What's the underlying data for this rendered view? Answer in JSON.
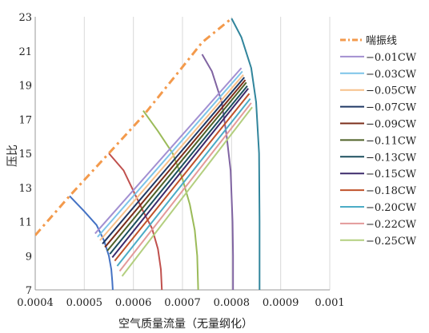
{
  "chart_data": {
    "type": "line",
    "xlabel": "空气质量流量（无量纲化）",
    "ylabel": "压比",
    "xlim": [
      0.0004,
      0.001
    ],
    "ylim": [
      7,
      23
    ],
    "xticks": [
      "0.0004",
      "0.0005",
      "0.0006",
      "0.0007",
      "0.0008",
      "0.0009",
      "0.001"
    ],
    "yticks": [
      "7",
      "9",
      "11",
      "13",
      "15",
      "17",
      "19",
      "21",
      "23"
    ],
    "grid": "vertical",
    "legend_position": "right",
    "series": [
      {
        "name": "喘振线",
        "color": "#f39a4c",
        "dash": "dashdot",
        "points": [
          [
            0.0004,
            10.2
          ],
          [
            0.00047,
            12.5
          ],
          [
            0.00055,
            15.0
          ],
          [
            0.00062,
            17.2
          ],
          [
            0.00069,
            19.7
          ],
          [
            0.00074,
            21.5
          ],
          [
            0.0008,
            22.9
          ]
        ]
      },
      {
        "name": "−0.01CW",
        "color": "#a28fd1",
        "points": [
          [
            0.000522,
            10.3
          ],
          [
            0.00082,
            20.0
          ]
        ]
      },
      {
        "name": "−0.03CW",
        "color": "#7cc4e8",
        "points": [
          [
            0.000527,
            10.1
          ],
          [
            0.000822,
            19.8
          ]
        ]
      },
      {
        "name": "−0.05CW",
        "color": "#f7c08a",
        "points": [
          [
            0.000532,
            9.9
          ],
          [
            0.000824,
            19.6
          ]
        ]
      },
      {
        "name": "−0.07CW",
        "color": "#1f3864",
        "points": [
          [
            0.000537,
            9.7
          ],
          [
            0.000826,
            19.45
          ]
        ]
      },
      {
        "name": "−0.09CW",
        "color": "#7b2d1a",
        "points": [
          [
            0.000542,
            9.5
          ],
          [
            0.000828,
            19.3
          ]
        ]
      },
      {
        "name": "−0.11CW",
        "color": "#4f6228",
        "points": [
          [
            0.000547,
            9.3
          ],
          [
            0.00083,
            19.15
          ]
        ]
      },
      {
        "name": "−0.13CW",
        "color": "#1b4f5e",
        "points": [
          [
            0.000552,
            9.1
          ],
          [
            0.000832,
            18.95
          ]
        ]
      },
      {
        "name": "−0.15CW",
        "color": "#3c2a6b",
        "points": [
          [
            0.000557,
            8.9
          ],
          [
            0.000834,
            18.8
          ]
        ]
      },
      {
        "name": "−0.18CW",
        "color": "#c0522a",
        "points": [
          [
            0.000562,
            8.7
          ],
          [
            0.000836,
            18.5
          ]
        ]
      },
      {
        "name": "−0.20CW",
        "color": "#4bacc6",
        "points": [
          [
            0.000567,
            8.4
          ],
          [
            0.000838,
            18.2
          ]
        ]
      },
      {
        "name": "−0.22CW",
        "color": "#e39a9a",
        "points": [
          [
            0.000572,
            8.1
          ],
          [
            0.00084,
            17.95
          ]
        ]
      },
      {
        "name": "−0.25CW",
        "color": "#b3cf7f",
        "points": [
          [
            0.000577,
            7.8
          ],
          [
            0.000842,
            17.7
          ]
        ]
      }
    ],
    "annotations": [
      {
        "color": "#4472c4",
        "points": [
          [
            0.00047,
            12.5
          ],
          [
            0.0005,
            11.6
          ],
          [
            0.000525,
            10.8
          ],
          [
            0.00054,
            9.9
          ],
          [
            0.00055,
            9.0
          ],
          [
            0.000555,
            8.2
          ],
          [
            0.000557,
            7.5
          ],
          [
            0.000558,
            7.0
          ]
        ]
      },
      {
        "color": "#c0504d",
        "points": [
          [
            0.00055,
            15.0
          ],
          [
            0.00058,
            14.0
          ],
          [
            0.0006,
            12.8
          ],
          [
            0.00062,
            11.6
          ],
          [
            0.000638,
            10.6
          ],
          [
            0.00065,
            9.4
          ],
          [
            0.000656,
            8.2
          ],
          [
            0.000658,
            7.0
          ]
        ]
      },
      {
        "color": "#9bbb59",
        "points": [
          [
            0.00062,
            17.5
          ],
          [
            0.00065,
            16.3
          ],
          [
            0.00068,
            15.0
          ],
          [
            0.0007,
            13.5
          ],
          [
            0.000715,
            12.0
          ],
          [
            0.000725,
            10.5
          ],
          [
            0.00073,
            9.0
          ],
          [
            0.000732,
            7.0
          ]
        ]
      },
      {
        "color": "#8064a2",
        "points": [
          [
            0.00074,
            20.8
          ],
          [
            0.00076,
            19.8
          ],
          [
            0.00078,
            18.0
          ],
          [
            0.00079,
            16.0
          ],
          [
            0.000798,
            14.0
          ],
          [
            0.000802,
            11.0
          ],
          [
            0.000803,
            9.0
          ],
          [
            0.000803,
            7.0
          ]
        ]
      },
      {
        "color": "#31859c",
        "points": [
          [
            0.0008,
            22.9
          ],
          [
            0.00082,
            21.8
          ],
          [
            0.00084,
            20.0
          ],
          [
            0.00085,
            18.0
          ],
          [
            0.000856,
            15.0
          ],
          [
            0.000857,
            11.0
          ],
          [
            0.000857,
            7.0
          ]
        ]
      }
    ]
  }
}
